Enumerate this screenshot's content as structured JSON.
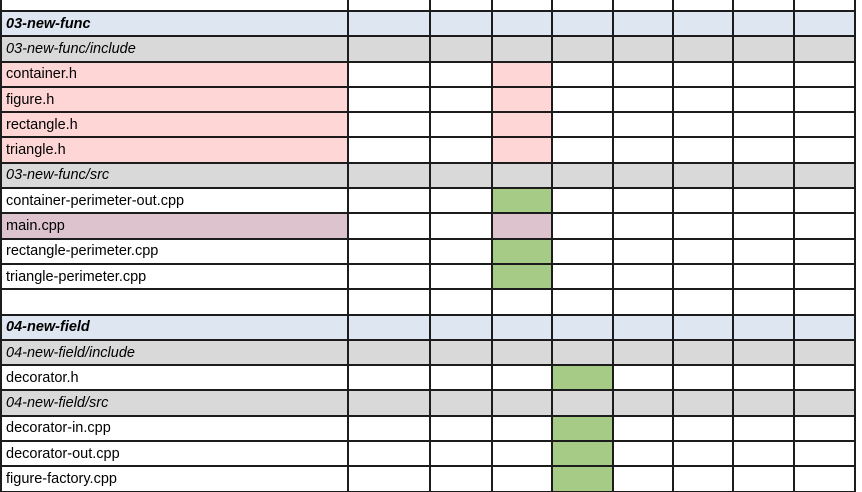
{
  "colors": {
    "section_row_bg": "#dde6f1",
    "directory_row_bg": "#d9d9d9",
    "header_pink": "#ffd6d6",
    "main_mauve": "#dcc3ce",
    "mark_green": "#a6cb87",
    "grid_border": "#1c1c1c",
    "cell_white": "#ffffff"
  },
  "table": {
    "num_columns": 9,
    "rows": [
      {
        "label": "",
        "type": "blank"
      },
      {
        "label": "03-new-func",
        "type": "section"
      },
      {
        "label": "03-new-func/include",
        "type": "directory"
      },
      {
        "label": "container.h",
        "type": "file",
        "label_fill": "header_pink",
        "fills": {
          "3": "header_pink"
        }
      },
      {
        "label": "figure.h",
        "type": "file",
        "label_fill": "header_pink",
        "fills": {
          "3": "header_pink"
        }
      },
      {
        "label": "rectangle.h",
        "type": "file",
        "label_fill": "header_pink",
        "fills": {
          "3": "header_pink"
        }
      },
      {
        "label": "triangle.h",
        "type": "file",
        "label_fill": "header_pink",
        "fills": {
          "3": "header_pink"
        }
      },
      {
        "label": "03-new-func/src",
        "type": "directory"
      },
      {
        "label": "container-perimeter-out.cpp",
        "type": "file",
        "fills": {
          "3": "mark_green"
        }
      },
      {
        "label": "main.cpp",
        "type": "file",
        "label_fill": "main_mauve",
        "fills": {
          "3": "main_mauve"
        }
      },
      {
        "label": "rectangle-perimeter.cpp",
        "type": "file",
        "fills": {
          "3": "mark_green"
        }
      },
      {
        "label": "triangle-perimeter.cpp",
        "type": "file",
        "fills": {
          "3": "mark_green"
        }
      },
      {
        "label": "",
        "type": "blank"
      },
      {
        "label": "04-new-field",
        "type": "section"
      },
      {
        "label": "04-new-field/include",
        "type": "directory"
      },
      {
        "label": "decorator.h",
        "type": "file",
        "fills": {
          "4": "mark_green"
        }
      },
      {
        "label": "04-new-field/src",
        "type": "directory"
      },
      {
        "label": "decorator-in.cpp",
        "type": "file",
        "fills": {
          "4": "mark_green"
        }
      },
      {
        "label": "decorator-out.cpp",
        "type": "file",
        "fills": {
          "4": "mark_green"
        }
      },
      {
        "label": "figure-factory.cpp",
        "type": "file",
        "fills": {
          "4": "mark_green"
        }
      }
    ]
  }
}
